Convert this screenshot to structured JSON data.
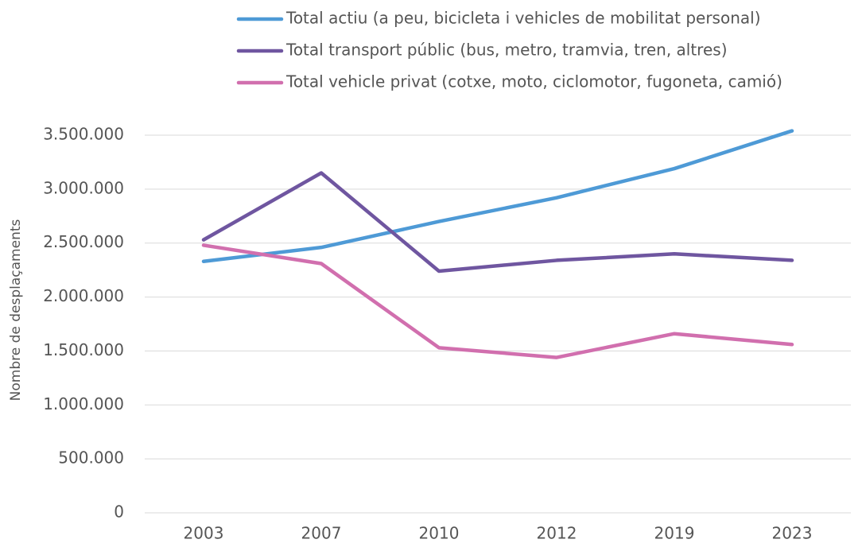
{
  "chart_data": {
    "type": "line",
    "y_label": "Nombre de desplaçaments",
    "categories": [
      "2003",
      "2007",
      "2010",
      "2012",
      "2019",
      "2023"
    ],
    "series": [
      {
        "name": "Total actiu (a peu, bicicleta i vehicles de mobilitat personal)",
        "color": "#4e9ad6",
        "values": [
          2330000,
          2460000,
          2700000,
          2920000,
          3190000,
          3540000
        ]
      },
      {
        "name": "Total transport públic (bus, metro, tramvia, tren, altres)",
        "color": "#6f56a0",
        "values": [
          2530000,
          3150000,
          2240000,
          2340000,
          2400000,
          2340000
        ]
      },
      {
        "name": "Total vehicle privat (cotxe, moto, ciclomotor, fugoneta, camió)",
        "color": "#d16fae",
        "values": [
          2480000,
          2310000,
          1530000,
          1440000,
          1660000,
          1560000
        ]
      }
    ],
    "ylim": [
      0,
      3500000
    ],
    "yticks": [
      0,
      {
        "value": 500000,
        "label": "500.000"
      },
      {
        "value": 1000000,
        "label": "1.000.000"
      },
      {
        "value": 1500000,
        "label": "1.500.000"
      },
      {
        "value": 2000000,
        "label": "2.000.000"
      },
      {
        "value": 2500000,
        "label": "2.500.000"
      },
      {
        "value": 3000000,
        "label": "3.000.000"
      },
      {
        "value": 3500000,
        "label": "3.500.000"
      }
    ],
    "grid": true,
    "legend": "top"
  }
}
